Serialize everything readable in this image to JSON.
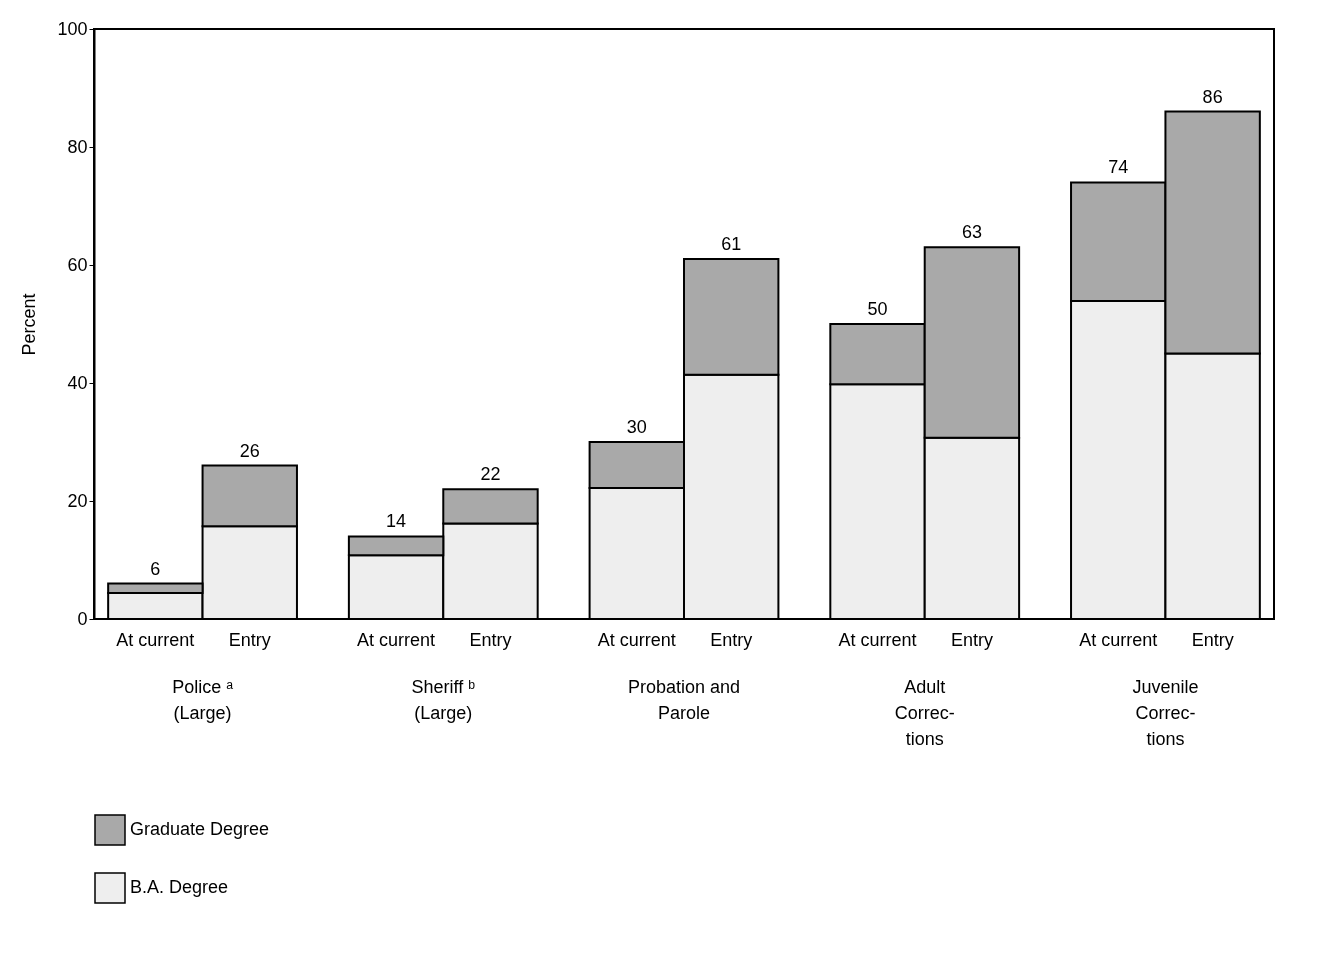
{
  "chart_data": {
    "type": "bar",
    "ylabel": "Percent",
    "stacked": true,
    "categories": [
      "At current",
      "Entry",
      "At current",
      "Entry",
      "At current",
      "Entry",
      "At current",
      "Entry",
      "At current",
      "Entry"
    ],
    "series": [
      {
        "name": "B.A. Degree",
        "color": "#eeeeee",
        "values": [
          4.4,
          15.7,
          10.8,
          16.2,
          22.2,
          41.4,
          39.8,
          30.7,
          53.9,
          45
        ]
      },
      {
        "name": "Graduate Degree",
        "color": "#a9a9a9",
        "values": [
          1.6,
          10.3,
          3.2,
          5.8,
          7.8,
          19.6,
          10.2,
          32.3,
          20.1,
          41
        ]
      }
    ],
    "totals": [
      "6",
      "26",
      "14",
      "22",
      "30",
      "61",
      "50",
      "63",
      "74",
      "86"
    ],
    "annotations": [
      "Police ᵃ\n(Large)",
      "Sheriff ᵇ\n(Large)",
      "Probation  and\nParole",
      "Adult\nCorrec-\ntions",
      "Juvenile\nCorrec-\ntions"
    ],
    "ylim": [
      0,
      100
    ],
    "yticks": [
      0,
      20,
      40,
      60,
      80,
      100
    ],
    "grid": false,
    "legend": "bottom left"
  }
}
